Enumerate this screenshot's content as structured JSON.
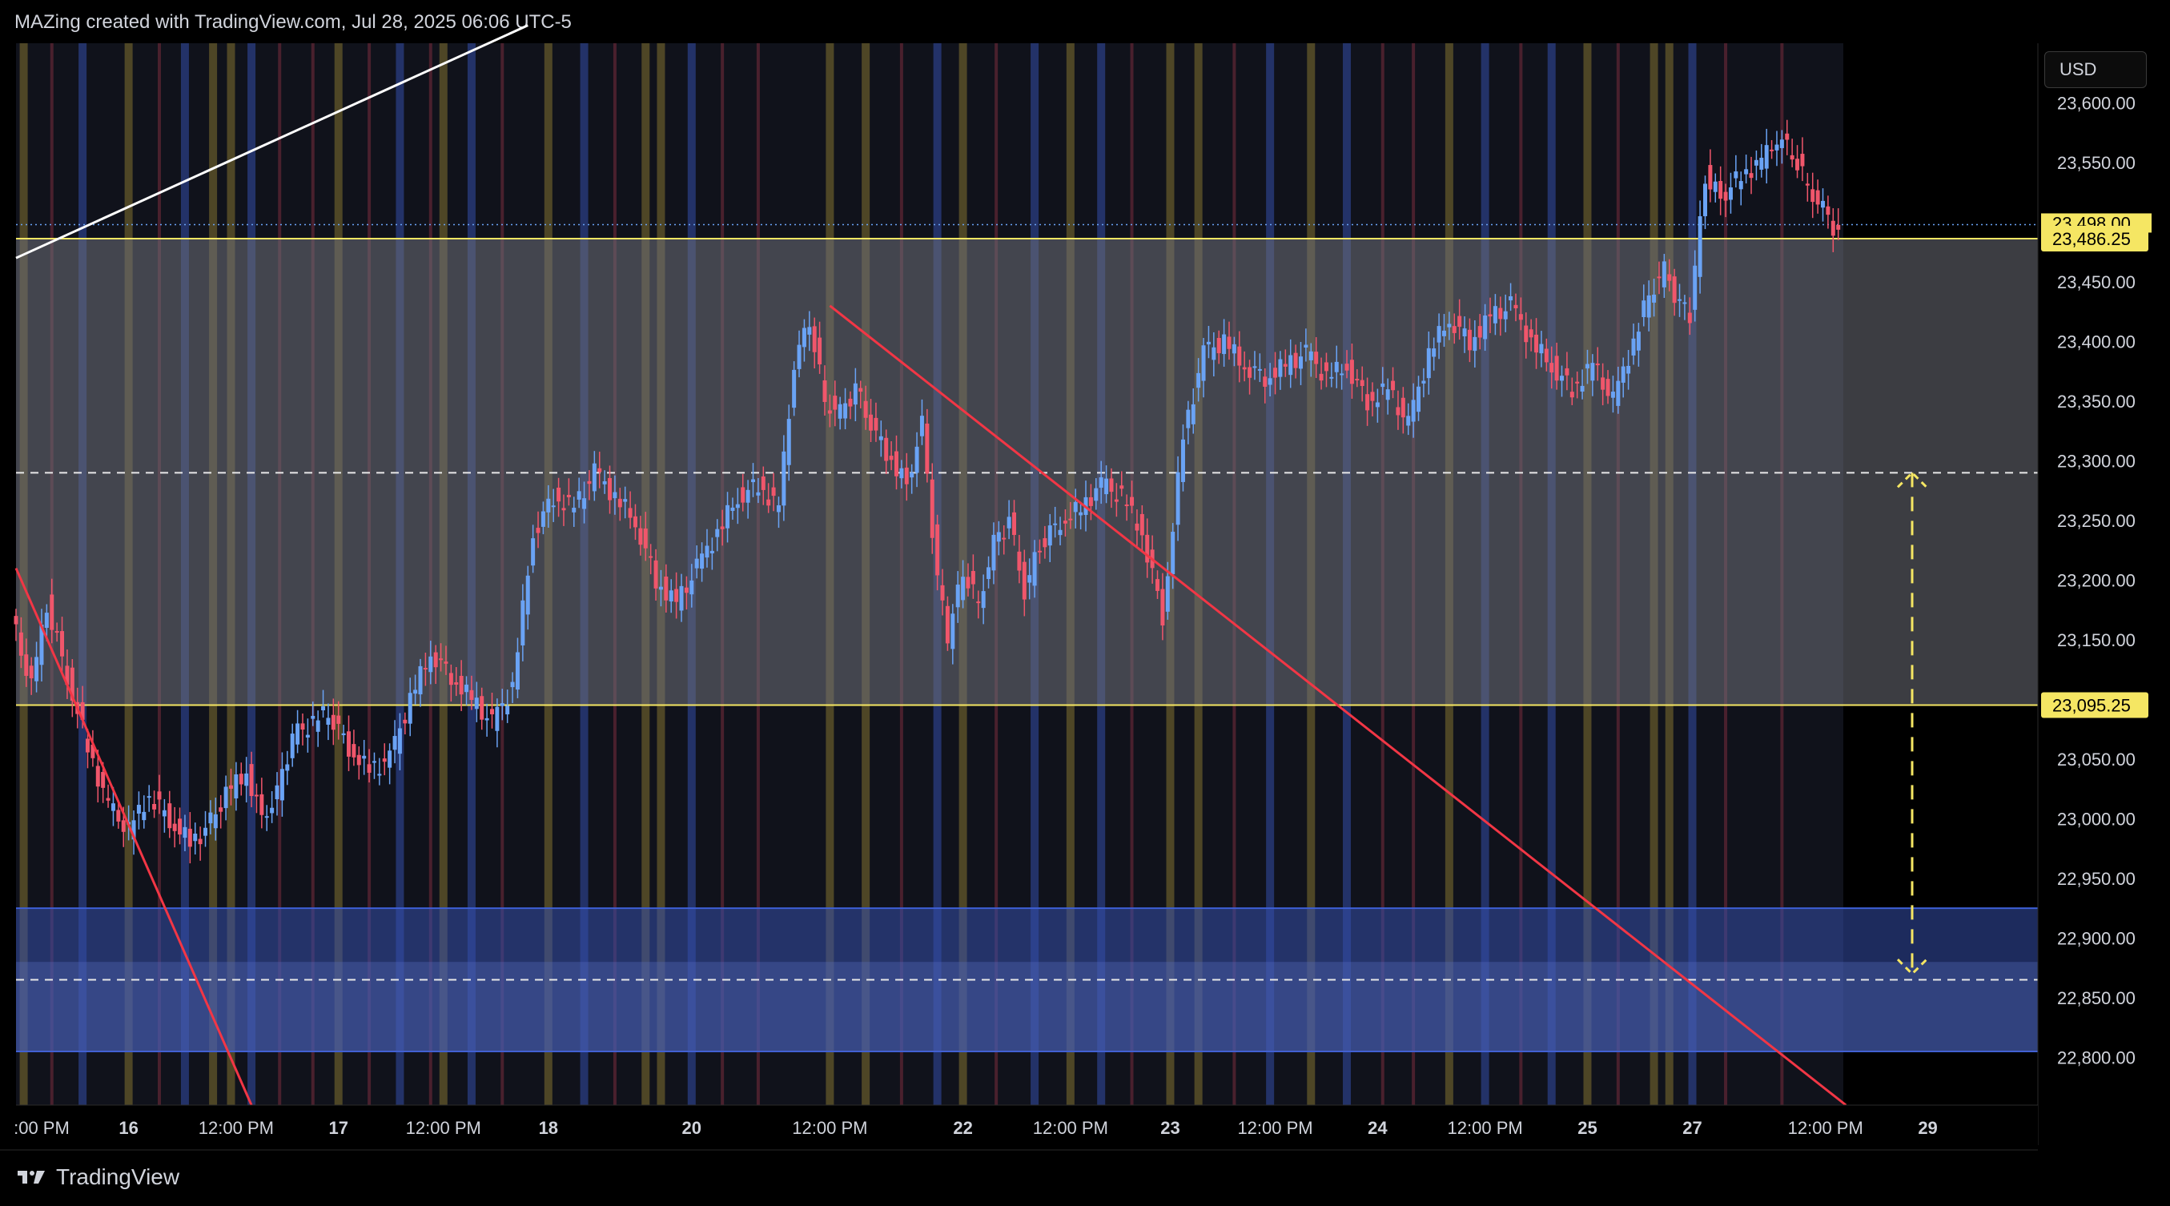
{
  "header": {
    "text": "MAZing created with TradingView.com, Jul 28, 2025 06:06 UTC-5"
  },
  "brand": {
    "label": "TradingView"
  },
  "axis": {
    "currency": "USD"
  },
  "colors": {
    "background": "#000000",
    "panel": "#131722",
    "up": "#6aa3f5",
    "down": "#f0566b",
    "level_line": "#f5e663",
    "trend_red": "#f23645",
    "trend_white": "#ffffff",
    "zone_gray": "#5a5d66",
    "zone_blue": "#2f4a9c",
    "tag_yellow": "#f5e663"
  },
  "chart_data": {
    "type": "candlestick",
    "title": "",
    "xlabel": "",
    "ylabel": "",
    "ylim": [
      22760,
      23650
    ],
    "y_ticks": [
      22800,
      22850,
      22900,
      22950,
      23000,
      23050,
      23100,
      23150,
      23200,
      23250,
      23300,
      23350,
      23400,
      23450,
      23500,
      23550,
      23600
    ],
    "y_tick_labels": [
      "22,800.00",
      "22,850.00",
      "22,900.00",
      "22,950.00",
      "23,000.00",
      "23,050.00",
      "23,100.00",
      "23,150.00",
      "23,200.00",
      "23,250.00",
      "23,300.00",
      "23,350.00",
      "23,400.00",
      "23,450.00",
      "23,500.00",
      "23,550.00",
      "23,600.00"
    ],
    "x_tick_labels": [
      ":00 PM",
      "16",
      "12:00 PM",
      "17",
      "12:00 PM",
      "18",
      "20",
      "12:00 PM",
      "22",
      "12:00 PM",
      "23",
      "12:00 PM",
      "24",
      "12:00 PM",
      "25",
      "27",
      "12:00 PM",
      "29"
    ],
    "price_tags": [
      {
        "label": "23,486.25",
        "value": 23486.25
      },
      {
        "label": "23,095.25",
        "value": 23095.25
      }
    ],
    "current_price": {
      "label": "23,498.00",
      "value": 23498
    },
    "levels": [
      {
        "value": 23486.25,
        "style": "solid"
      },
      {
        "value": 23095.25,
        "style": "solid"
      },
      {
        "value": 23290,
        "style": "dashed"
      },
      {
        "value": 22865,
        "style": "dashed"
      }
    ],
    "zones": [
      {
        "from": 23095.25,
        "to": 23486.25,
        "color": "gray"
      },
      {
        "from": 22805,
        "to": 22925,
        "color": "blue"
      }
    ],
    "measure_arrow": {
      "from": 23290,
      "to": 22870
    },
    "price_path": [
      [
        0,
        23170
      ],
      [
        8,
        23110
      ],
      [
        14,
        23180
      ],
      [
        22,
        23120
      ],
      [
        30,
        23060
      ],
      [
        38,
        23010
      ],
      [
        46,
        22990
      ],
      [
        54,
        23020
      ],
      [
        62,
        23000
      ],
      [
        70,
        22980
      ],
      [
        76,
        22990
      ],
      [
        84,
        23020
      ],
      [
        92,
        23040
      ],
      [
        98,
        23000
      ],
      [
        104,
        23020
      ],
      [
        110,
        23070
      ],
      [
        118,
        23080
      ],
      [
        124,
        23090
      ],
      [
        132,
        23060
      ],
      [
        140,
        23040
      ],
      [
        148,
        23050
      ],
      [
        156,
        23100
      ],
      [
        164,
        23140
      ],
      [
        172,
        23120
      ],
      [
        180,
        23100
      ],
      [
        188,
        23080
      ],
      [
        196,
        23110
      ],
      [
        204,
        23240
      ],
      [
        212,
        23270
      ],
      [
        220,
        23260
      ],
      [
        228,
        23290
      ],
      [
        236,
        23270
      ],
      [
        244,
        23250
      ],
      [
        252,
        23200
      ],
      [
        260,
        23180
      ],
      [
        268,
        23210
      ],
      [
        276,
        23240
      ],
      [
        284,
        23270
      ],
      [
        292,
        23280
      ],
      [
        300,
        23260
      ],
      [
        306,
        23380
      ],
      [
        312,
        23420
      ],
      [
        318,
        23350
      ],
      [
        324,
        23340
      ],
      [
        330,
        23360
      ],
      [
        336,
        23330
      ],
      [
        344,
        23300
      ],
      [
        350,
        23280
      ],
      [
        356,
        23330
      ],
      [
        362,
        23200
      ],
      [
        366,
        23150
      ],
      [
        372,
        23210
      ],
      [
        378,
        23180
      ],
      [
        384,
        23230
      ],
      [
        390,
        23250
      ],
      [
        396,
        23190
      ],
      [
        402,
        23230
      ],
      [
        410,
        23250
      ],
      [
        418,
        23260
      ],
      [
        426,
        23280
      ],
      [
        434,
        23270
      ],
      [
        442,
        23240
      ],
      [
        450,
        23170
      ],
      [
        458,
        23320
      ],
      [
        466,
        23390
      ],
      [
        474,
        23400
      ],
      [
        482,
        23380
      ],
      [
        490,
        23370
      ],
      [
        498,
        23380
      ],
      [
        506,
        23390
      ],
      [
        514,
        23370
      ],
      [
        522,
        23380
      ],
      [
        530,
        23350
      ],
      [
        538,
        23360
      ],
      [
        546,
        23330
      ],
      [
        554,
        23390
      ],
      [
        562,
        23420
      ],
      [
        570,
        23400
      ],
      [
        578,
        23420
      ],
      [
        586,
        23430
      ],
      [
        594,
        23400
      ],
      [
        602,
        23380
      ],
      [
        610,
        23360
      ],
      [
        618,
        23380
      ],
      [
        626,
        23350
      ],
      [
        634,
        23400
      ],
      [
        640,
        23440
      ],
      [
        646,
        23460
      ],
      [
        652,
        23430
      ],
      [
        656,
        23420
      ],
      [
        662,
        23540
      ],
      [
        668,
        23520
      ],
      [
        676,
        23540
      ],
      [
        684,
        23550
      ],
      [
        690,
        23570
      ],
      [
        696,
        23560
      ],
      [
        702,
        23530
      ],
      [
        708,
        23510
      ],
      [
        714,
        23490
      ]
    ],
    "x_range": [
      0,
      790
    ],
    "x_ticks_pos": [
      10,
      44,
      86,
      126,
      167,
      208,
      264,
      318,
      370,
      412,
      451,
      492,
      532,
      574,
      614,
      655,
      707,
      747
    ],
    "session_bands": [
      {
        "x": 3,
        "color": "gold"
      },
      {
        "x": 14,
        "color": "red"
      },
      {
        "x": 26,
        "color": "blue"
      },
      {
        "x": 44,
        "color": "gold"
      },
      {
        "x": 56,
        "color": "red"
      },
      {
        "x": 66,
        "color": "blue"
      },
      {
        "x": 77,
        "color": "gold"
      },
      {
        "x": 84,
        "color": "gold"
      },
      {
        "x": 92,
        "color": "blue"
      },
      {
        "x": 103,
        "color": "red"
      },
      {
        "x": 116,
        "color": "red"
      },
      {
        "x": 126,
        "color": "gold"
      },
      {
        "x": 138,
        "color": "red"
      },
      {
        "x": 150,
        "color": "blue"
      },
      {
        "x": 162,
        "color": "red"
      },
      {
        "x": 167,
        "color": "gold"
      },
      {
        "x": 178,
        "color": "blue"
      },
      {
        "x": 190,
        "color": "red"
      },
      {
        "x": 208,
        "color": "gold"
      },
      {
        "x": 222,
        "color": "blue"
      },
      {
        "x": 234,
        "color": "red"
      },
      {
        "x": 246,
        "color": "gold"
      },
      {
        "x": 252,
        "color": "gold"
      },
      {
        "x": 264,
        "color": "blue"
      },
      {
        "x": 276,
        "color": "red"
      },
      {
        "x": 290,
        "color": "red"
      },
      {
        "x": 318,
        "color": "gold"
      },
      {
        "x": 332,
        "color": "gold"
      },
      {
        "x": 346,
        "color": "red"
      },
      {
        "x": 360,
        "color": "blue"
      },
      {
        "x": 370,
        "color": "gold"
      },
      {
        "x": 383,
        "color": "red"
      },
      {
        "x": 398,
        "color": "blue"
      },
      {
        "x": 412,
        "color": "gold"
      },
      {
        "x": 424,
        "color": "blue"
      },
      {
        "x": 436,
        "color": "red"
      },
      {
        "x": 451,
        "color": "gold"
      },
      {
        "x": 462,
        "color": "gold"
      },
      {
        "x": 476,
        "color": "red"
      },
      {
        "x": 490,
        "color": "blue"
      },
      {
        "x": 506,
        "color": "gold"
      },
      {
        "x": 520,
        "color": "blue"
      },
      {
        "x": 534,
        "color": "red"
      },
      {
        "x": 546,
        "color": "red"
      },
      {
        "x": 560,
        "color": "gold"
      },
      {
        "x": 574,
        "color": "blue"
      },
      {
        "x": 588,
        "color": "red"
      },
      {
        "x": 600,
        "color": "blue"
      },
      {
        "x": 614,
        "color": "gold"
      },
      {
        "x": 626,
        "color": "red"
      },
      {
        "x": 640,
        "color": "gold"
      },
      {
        "x": 646,
        "color": "gold"
      },
      {
        "x": 655,
        "color": "blue"
      },
      {
        "x": 668,
        "color": "red"
      },
      {
        "x": 690,
        "color": "red"
      }
    ],
    "trendlines": [
      {
        "color": "white",
        "from": [
          0,
          23470
        ],
        "to": [
          200,
          23665
        ]
      },
      {
        "color": "red",
        "from": [
          0,
          23210
        ],
        "to": [
          92,
          22760
        ]
      },
      {
        "color": "red",
        "from": [
          318,
          23430
        ],
        "to": [
          715,
          22760
        ]
      }
    ]
  }
}
